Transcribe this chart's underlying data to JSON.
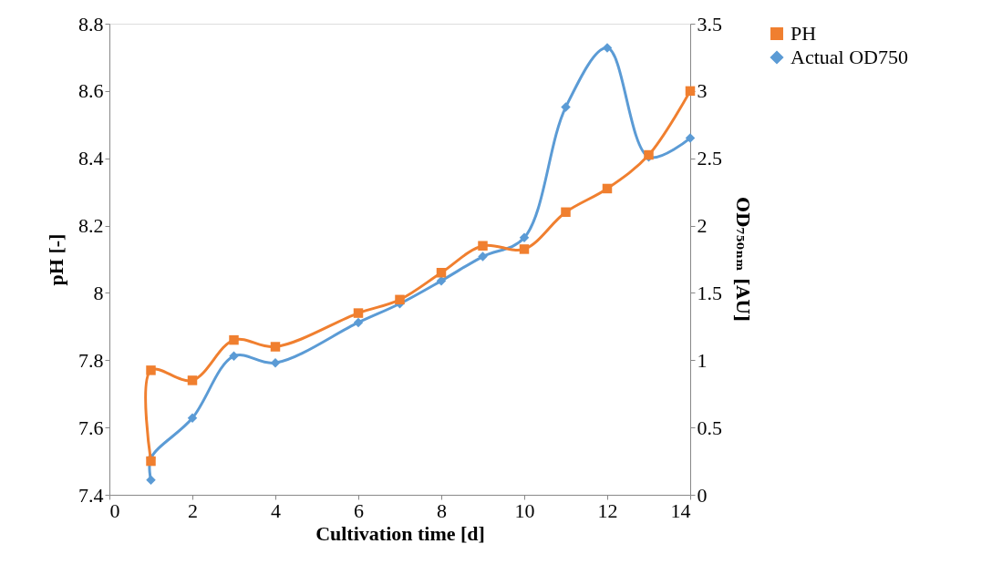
{
  "chart_data": {
    "type": "line",
    "xlabel": "Cultivation time [d]",
    "ylabel": "pH [-]",
    "y2label": "OD₇₅₀ₙₘ [AU]",
    "xlim": [
      0,
      14
    ],
    "xticks": [
      0,
      2,
      4,
      6,
      8,
      10,
      12,
      14
    ],
    "ylim": [
      7.4,
      8.8
    ],
    "yticks": [
      7.4,
      7.6,
      7.8,
      8,
      8.2,
      8.4,
      8.6,
      8.8
    ],
    "y2lim": [
      0,
      3.5
    ],
    "y2ticks": [
      0,
      0.5,
      1,
      1.5,
      2,
      2.5,
      3,
      3.5
    ],
    "grid": false,
    "legend": "top right",
    "line_style": "solid",
    "series": [
      {
        "name": "PH",
        "color": "#f07f2f",
        "marker": "square",
        "x": [
          1,
          1,
          2,
          3,
          4,
          6,
          7,
          8,
          9,
          10,
          11,
          12,
          13,
          14
        ],
        "values": [
          7.5,
          7.77,
          7.74,
          7.86,
          7.84,
          7.94,
          7.98,
          8.06,
          8.14,
          8.13,
          8.24,
          8.31,
          8.41,
          8.6
        ]
      },
      {
        "name": "Actual OD750",
        "color": "#5b9bd5",
        "marker": "diamond",
        "axis": "y2",
        "x": [
          1,
          1,
          2,
          3,
          4,
          6,
          7,
          8,
          9,
          10,
          11,
          12,
          13,
          14
        ],
        "values": [
          0.11,
          0.27,
          0.57,
          1.03,
          0.98,
          1.28,
          1.42,
          1.59,
          1.77,
          1.91,
          2.88,
          3.32,
          2.51,
          2.65
        ]
      }
    ]
  }
}
